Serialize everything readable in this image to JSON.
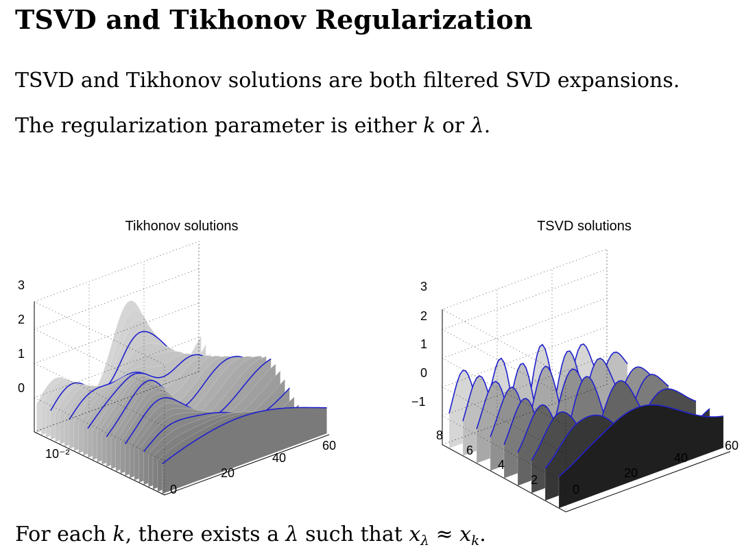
{
  "page": {
    "title": "TSVD and Tikhonov Regularization",
    "paragraph_1": "TSVD and Tikhonov solutions are both filtered SVD expansions.",
    "paragraph_2": {
      "prefix": "The regularization parameter is either ",
      "sym_k": "k",
      "mid": " or ",
      "sym_lambda": "λ",
      "suffix": "."
    },
    "paragraph_3": {
      "prefix": "For each ",
      "sym_k": "k",
      "mid1": ", there exists a ",
      "sym_lambda": "λ",
      "mid2": " such that ",
      "x1": "x",
      "sub1": "λ",
      "approx": " ≈ ",
      "x2": "x",
      "sub2": "k",
      "suffix": "."
    }
  },
  "chart_data": [
    {
      "type": "surface",
      "title": "Tikhonov solutions",
      "z_ticks": [
        "3",
        "2",
        "1",
        "0"
      ],
      "x_ticks": [
        "0",
        "20",
        "40",
        "60"
      ],
      "y_ticks": [
        "10⁻²"
      ],
      "y_scale": "log",
      "grid": true,
      "colors": {
        "surface": "#8a8a8a",
        "curves": "#1f1fcf"
      }
    },
    {
      "type": "surface",
      "title": "TSVD solutions",
      "z_ticks": [
        "3",
        "2",
        "1",
        "0",
        "−1"
      ],
      "x_ticks": [
        "0",
        "20",
        "40",
        "60"
      ],
      "y_ticks": [
        "8",
        "6",
        "4",
        "2"
      ],
      "grid": true,
      "colors": {
        "surface": "#6a6a6a",
        "curves": "#1f1fcf"
      }
    }
  ]
}
